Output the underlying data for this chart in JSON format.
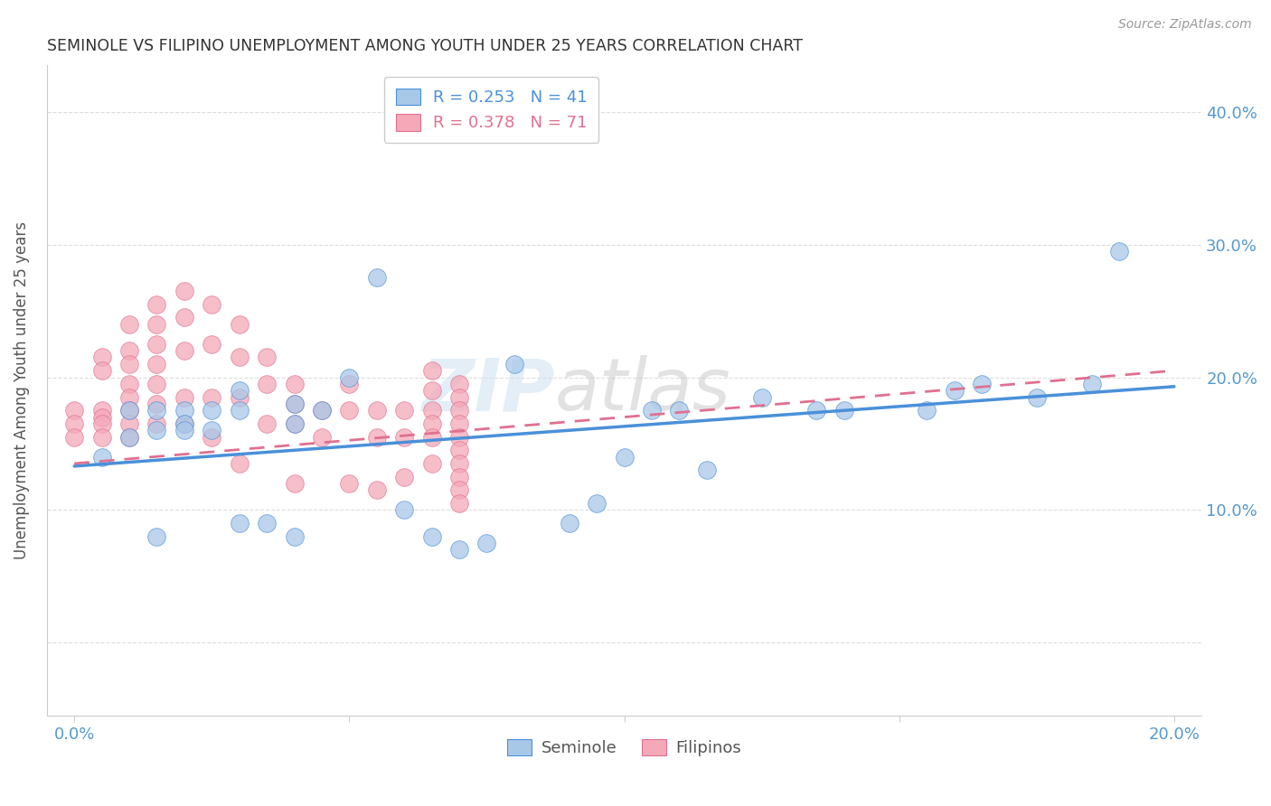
{
  "title": "SEMINOLE VS FILIPINO UNEMPLOYMENT AMONG YOUTH UNDER 25 YEARS CORRELATION CHART",
  "source": "Source: ZipAtlas.com",
  "ylabel_label": "Unemployment Among Youth under 25 years",
  "watermark": "ZIPatlas",
  "x_min": -0.005,
  "x_max": 0.205,
  "y_min": -0.055,
  "y_max": 0.435,
  "x_ticks": [
    0.0,
    0.05,
    0.1,
    0.15,
    0.2
  ],
  "x_tick_labels": [
    "0.0%",
    "",
    "",
    "",
    "20.0%"
  ],
  "y_ticks": [
    0.0,
    0.1,
    0.2,
    0.3,
    0.4
  ],
  "y_tick_labels": [
    "",
    "10.0%",
    "20.0%",
    "30.0%",
    "40.0%"
  ],
  "seminole_R": 0.253,
  "seminole_N": 41,
  "filipino_R": 0.378,
  "filipino_N": 71,
  "seminole_color": "#a8c8e8",
  "filipino_color": "#f4a8b8",
  "seminole_line_color": "#4a90d9",
  "filipino_line_color": "#e07090",
  "seminole_scatter_x": [
    0.005,
    0.01,
    0.01,
    0.015,
    0.015,
    0.015,
    0.02,
    0.02,
    0.02,
    0.025,
    0.025,
    0.03,
    0.03,
    0.03,
    0.035,
    0.04,
    0.04,
    0.04,
    0.045,
    0.05,
    0.055,
    0.06,
    0.065,
    0.07,
    0.075,
    0.08,
    0.09,
    0.095,
    0.1,
    0.105,
    0.11,
    0.115,
    0.125,
    0.135,
    0.14,
    0.155,
    0.16,
    0.165,
    0.175,
    0.185,
    0.19
  ],
  "seminole_scatter_y": [
    0.14,
    0.175,
    0.155,
    0.175,
    0.16,
    0.08,
    0.175,
    0.165,
    0.16,
    0.175,
    0.16,
    0.19,
    0.175,
    0.09,
    0.09,
    0.18,
    0.165,
    0.08,
    0.175,
    0.2,
    0.275,
    0.1,
    0.08,
    0.07,
    0.075,
    0.21,
    0.09,
    0.105,
    0.14,
    0.175,
    0.175,
    0.13,
    0.185,
    0.175,
    0.175,
    0.175,
    0.19,
    0.195,
    0.185,
    0.195,
    0.295
  ],
  "filipino_scatter_x": [
    0.0,
    0.0,
    0.0,
    0.005,
    0.005,
    0.005,
    0.005,
    0.005,
    0.005,
    0.01,
    0.01,
    0.01,
    0.01,
    0.01,
    0.01,
    0.01,
    0.01,
    0.015,
    0.015,
    0.015,
    0.015,
    0.015,
    0.015,
    0.015,
    0.02,
    0.02,
    0.02,
    0.02,
    0.02,
    0.025,
    0.025,
    0.025,
    0.025,
    0.03,
    0.03,
    0.03,
    0.03,
    0.035,
    0.035,
    0.035,
    0.04,
    0.04,
    0.04,
    0.04,
    0.045,
    0.045,
    0.05,
    0.05,
    0.05,
    0.055,
    0.055,
    0.055,
    0.06,
    0.06,
    0.06,
    0.065,
    0.065,
    0.065,
    0.065,
    0.065,
    0.065,
    0.07,
    0.07,
    0.07,
    0.07,
    0.07,
    0.07,
    0.07,
    0.07,
    0.07,
    0.07
  ],
  "filipino_scatter_y": [
    0.175,
    0.165,
    0.155,
    0.215,
    0.205,
    0.175,
    0.17,
    0.165,
    0.155,
    0.24,
    0.22,
    0.21,
    0.195,
    0.185,
    0.175,
    0.165,
    0.155,
    0.255,
    0.24,
    0.225,
    0.21,
    0.195,
    0.18,
    0.165,
    0.265,
    0.245,
    0.22,
    0.185,
    0.165,
    0.255,
    0.225,
    0.185,
    0.155,
    0.24,
    0.215,
    0.185,
    0.135,
    0.215,
    0.195,
    0.165,
    0.195,
    0.18,
    0.165,
    0.12,
    0.175,
    0.155,
    0.195,
    0.175,
    0.12,
    0.175,
    0.155,
    0.115,
    0.175,
    0.155,
    0.125,
    0.205,
    0.19,
    0.175,
    0.165,
    0.155,
    0.135,
    0.195,
    0.185,
    0.175,
    0.165,
    0.155,
    0.145,
    0.135,
    0.125,
    0.115,
    0.105
  ],
  "seminole_line_x": [
    0.0,
    0.2
  ],
  "seminole_line_y": [
    0.133,
    0.193
  ],
  "filipino_line_x": [
    0.0,
    0.07
  ],
  "filipino_line_y": [
    0.145,
    0.195
  ],
  "background_color": "#ffffff",
  "grid_color": "#dddddd",
  "title_color": "#333333",
  "tick_color": "#5599cc"
}
